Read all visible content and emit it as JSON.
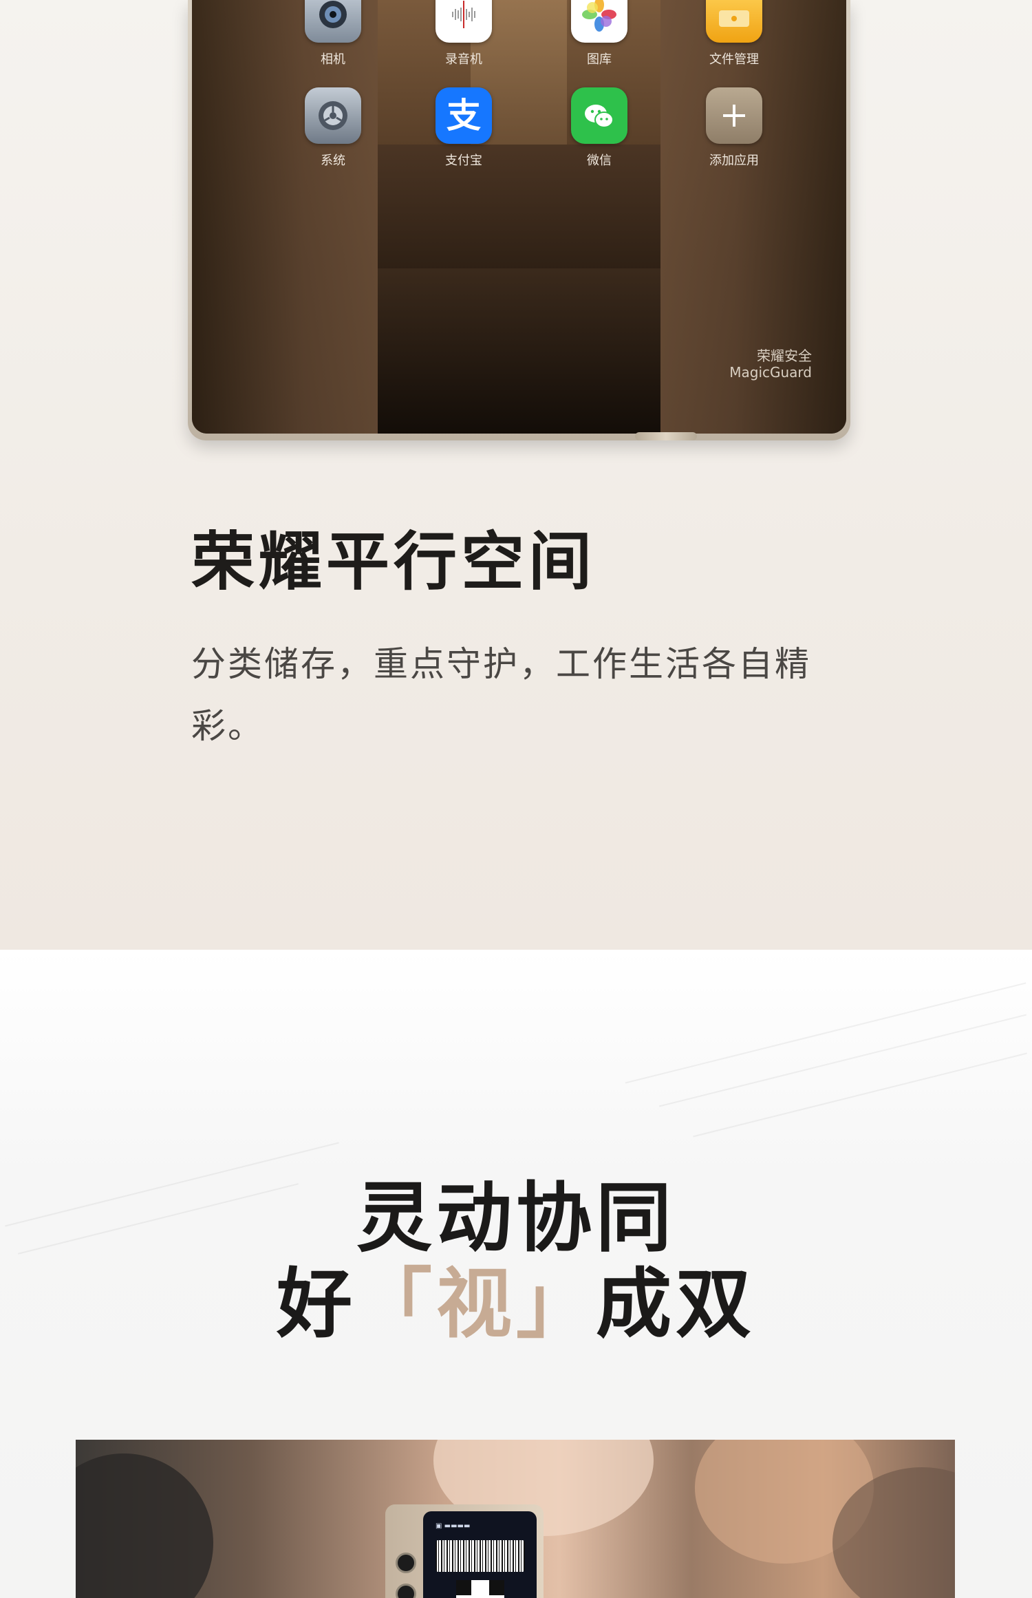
{
  "top_phone": {
    "apps": [
      {
        "label": "相机",
        "icon": "camera-icon",
        "color": "#8a97a6"
      },
      {
        "label": "录音机",
        "icon": "recorder-icon",
        "color": "#ffffff"
      },
      {
        "label": "图库",
        "icon": "gallery-icon",
        "color": "#ffffff"
      },
      {
        "label": "文件管理",
        "icon": "file-manager-icon",
        "color": "#f3b224"
      },
      {
        "label": "系统",
        "icon": "settings-icon",
        "color": "#7f8a98"
      },
      {
        "label": "支付宝",
        "icon": "alipay-icon",
        "color": "#1677ff"
      },
      {
        "label": "微信",
        "icon": "wechat-icon",
        "color": "#2ec14b"
      },
      {
        "label": "添加应用",
        "icon": "add-app-icon",
        "color": "#9a8a76"
      }
    ],
    "badge_line1": "荣耀安全",
    "badge_line2": "MagicGuard"
  },
  "section1": {
    "title": "荣耀平行空间",
    "description": "分类储存，重点守护，工作生活各自精彩。"
  },
  "section2": {
    "title_line1": "灵动协同",
    "title_line2_prefix": "好",
    "title_line2_accent": "「视」",
    "title_line2_suffix": "成双",
    "accent_color": "#c7ab94"
  }
}
